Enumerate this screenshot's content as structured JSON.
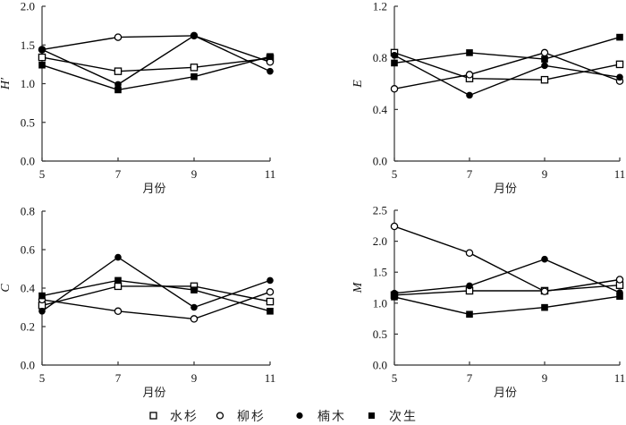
{
  "legend": [
    {
      "name": "水杉",
      "marker": "open-square"
    },
    {
      "name": "柳杉",
      "marker": "open-circle"
    },
    {
      "name": "楠木",
      "marker": "filled-circle"
    },
    {
      "name": "次生",
      "marker": "filled-square"
    }
  ],
  "chart_data": [
    {
      "type": "line",
      "id": "H",
      "title": "",
      "xlabel": "月份",
      "ylabel": "H′",
      "x": [
        5,
        7,
        9,
        11
      ],
      "xticks": [
        "5",
        "7",
        "9",
        "11"
      ],
      "yticks": [
        "0.0",
        "0.5",
        "1.0",
        "1.5",
        "2.0"
      ],
      "ytick_values": [
        0,
        0.5,
        1.0,
        1.5,
        2.0
      ],
      "ylim": [
        0,
        2.0
      ],
      "grid": false,
      "series": [
        {
          "name": "水杉",
          "marker": "open-square",
          "values": [
            1.34,
            1.16,
            1.21,
            1.33
          ]
        },
        {
          "name": "柳杉",
          "marker": "open-circle",
          "values": [
            1.44,
            1.6,
            1.62,
            1.28
          ]
        },
        {
          "name": "楠木",
          "marker": "filled-circle",
          "values": [
            1.44,
            0.99,
            1.62,
            1.16
          ]
        },
        {
          "name": "次生",
          "marker": "filled-square",
          "values": [
            1.24,
            0.92,
            1.09,
            1.35
          ]
        }
      ]
    },
    {
      "type": "line",
      "id": "E",
      "title": "",
      "xlabel": "月份",
      "ylabel": "E",
      "x": [
        5,
        7,
        9,
        11
      ],
      "xticks": [
        "5",
        "7",
        "9",
        "11"
      ],
      "yticks": [
        "0.0",
        "0.4",
        "0.8",
        "1.2"
      ],
      "ytick_values": [
        0,
        0.4,
        0.8,
        1.2
      ],
      "ylim": [
        0,
        1.2
      ],
      "grid": false,
      "series": [
        {
          "name": "水杉",
          "marker": "open-square",
          "values": [
            0.84,
            0.64,
            0.63,
            0.75
          ]
        },
        {
          "name": "柳杉",
          "marker": "open-circle",
          "values": [
            0.56,
            0.67,
            0.84,
            0.62
          ]
        },
        {
          "name": "楠木",
          "marker": "filled-circle",
          "values": [
            0.82,
            0.51,
            0.74,
            0.65
          ]
        },
        {
          "name": "次生",
          "marker": "filled-square",
          "values": [
            0.76,
            0.84,
            0.79,
            0.96
          ]
        }
      ]
    },
    {
      "type": "line",
      "id": "C",
      "title": "",
      "xlabel": "月份",
      "ylabel": "C",
      "x": [
        5,
        7,
        9,
        11
      ],
      "xticks": [
        "5",
        "7",
        "9",
        "11"
      ],
      "yticks": [
        "0.0",
        "0.2",
        "0.4",
        "0.6",
        "0.8"
      ],
      "ytick_values": [
        0,
        0.2,
        0.4,
        0.6,
        0.8
      ],
      "ylim": [
        0,
        0.8
      ],
      "grid": false,
      "series": [
        {
          "name": "水杉",
          "marker": "open-square",
          "values": [
            0.31,
            0.41,
            0.41,
            0.33
          ]
        },
        {
          "name": "柳杉",
          "marker": "open-circle",
          "values": [
            0.34,
            0.28,
            0.24,
            0.38
          ]
        },
        {
          "name": "楠木",
          "marker": "filled-circle",
          "values": [
            0.28,
            0.56,
            0.3,
            0.44
          ]
        },
        {
          "name": "次生",
          "marker": "filled-square",
          "values": [
            0.36,
            0.44,
            0.39,
            0.28
          ]
        }
      ]
    },
    {
      "type": "line",
      "id": "M",
      "title": "",
      "xlabel": "月份",
      "ylabel": "M",
      "x": [
        5,
        7,
        9,
        11
      ],
      "xticks": [
        "5",
        "7",
        "9",
        "11"
      ],
      "yticks": [
        "0.0",
        "0.5",
        "1.0",
        "1.5",
        "2.0",
        "2.5"
      ],
      "ytick_values": [
        0,
        0.5,
        1.0,
        1.5,
        2.0,
        2.5
      ],
      "ylim": [
        0,
        2.5
      ],
      "grid": false,
      "series": [
        {
          "name": "水杉",
          "marker": "open-square",
          "values": [
            1.13,
            1.2,
            1.2,
            1.29
          ]
        },
        {
          "name": "柳杉",
          "marker": "open-circle",
          "values": [
            2.24,
            1.81,
            1.19,
            1.38
          ]
        },
        {
          "name": "楠木",
          "marker": "filled-circle",
          "values": [
            1.16,
            1.28,
            1.71,
            1.17
          ]
        },
        {
          "name": "次生",
          "marker": "filled-square",
          "values": [
            1.1,
            0.82,
            0.93,
            1.11
          ]
        }
      ]
    }
  ]
}
